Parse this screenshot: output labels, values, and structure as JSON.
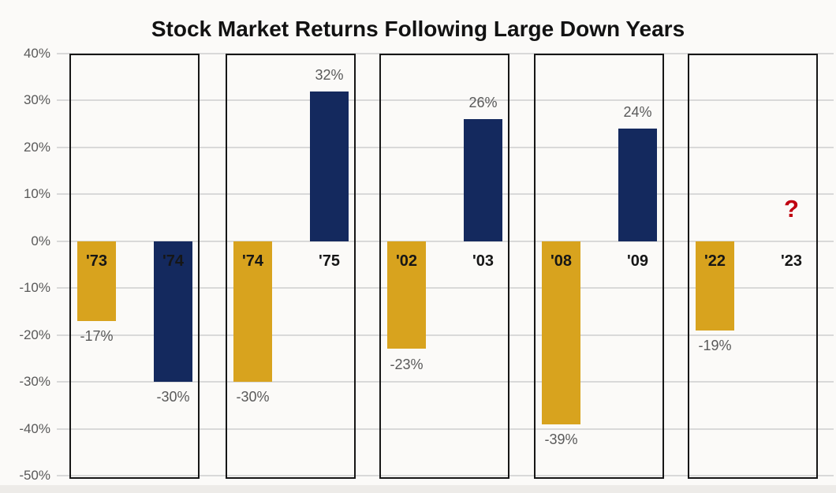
{
  "title": "Stock Market Returns Following Large Down Years",
  "colors": {
    "down_bar": "#d8a31e",
    "up_bar": "#14295e",
    "grid": "#d9d9d9",
    "axis_label": "#595959",
    "value_label": "#595959",
    "year_label": "#161616",
    "panel_border": "#161616",
    "question_mark": "#c00010",
    "background": "#fbfaf8"
  },
  "y_axis": {
    "ticks": [
      {
        "label": "40%",
        "value": 40
      },
      {
        "label": "30%",
        "value": 30
      },
      {
        "label": "20%",
        "value": 20
      },
      {
        "label": "10%",
        "value": 10
      },
      {
        "label": "0%",
        "value": 0
      },
      {
        "label": "-10%",
        "value": -10
      },
      {
        "label": "-20%",
        "value": -20
      },
      {
        "label": "-30%",
        "value": -30
      },
      {
        "label": "-40%",
        "value": -40
      },
      {
        "label": "-50%",
        "value": -50
      }
    ]
  },
  "chart_data": {
    "type": "bar",
    "title": "Stock Market Returns Following Large Down Years",
    "xlabel": "",
    "ylabel": "",
    "ylim": [
      -50,
      40
    ],
    "grid": true,
    "unit": "percent",
    "legend": null,
    "panels": [
      {
        "bars": [
          {
            "year": "'73",
            "value": -17,
            "value_label": "-17%",
            "role": "down-year"
          },
          {
            "year": "'74",
            "value": -30,
            "value_label": "-30%",
            "role": "next-year"
          }
        ]
      },
      {
        "bars": [
          {
            "year": "'74",
            "value": -30,
            "value_label": "-30%",
            "role": "down-year"
          },
          {
            "year": "'75",
            "value": 32,
            "value_label": "32%",
            "role": "next-year"
          }
        ]
      },
      {
        "bars": [
          {
            "year": "'02",
            "value": -23,
            "value_label": "-23%",
            "role": "down-year"
          },
          {
            "year": "'03",
            "value": 26,
            "value_label": "26%",
            "role": "next-year"
          }
        ]
      },
      {
        "bars": [
          {
            "year": "'08",
            "value": -39,
            "value_label": "-39%",
            "role": "down-year"
          },
          {
            "year": "'09",
            "value": 24,
            "value_label": "24%",
            "role": "next-year"
          }
        ]
      },
      {
        "bars": [
          {
            "year": "'22",
            "value": -19,
            "value_label": "-19%",
            "role": "down-year"
          },
          {
            "year": "'23",
            "value": null,
            "value_label": "?",
            "role": "next-year"
          }
        ]
      }
    ]
  }
}
